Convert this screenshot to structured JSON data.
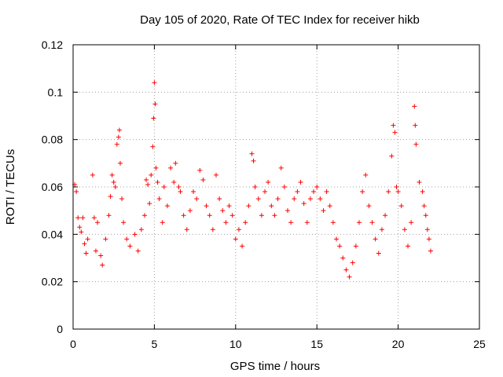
{
  "chart_data": {
    "type": "scatter",
    "title": "Day 105 of 2020, Rate Of TEC Index for receiver hikb",
    "xlabel": "GPS time / hours",
    "ylabel": "ROTI / TECUs",
    "xlim": [
      0,
      25
    ],
    "ylim": [
      0,
      0.12
    ],
    "x_ticks": [
      "0",
      "5",
      "10",
      "15",
      "20",
      "25"
    ],
    "y_ticks": [
      "0",
      "0.02",
      "0.04",
      "0.06",
      "0.08",
      "0.1",
      "0.12"
    ],
    "grid": true,
    "marker": "plus",
    "color": "#ff0000",
    "series": [
      {
        "values": [
          [
            0.1,
            0.061
          ],
          [
            0.2,
            0.058
          ],
          [
            0.3,
            0.047
          ],
          [
            0.4,
            0.043
          ],
          [
            0.5,
            0.041
          ],
          [
            0.6,
            0.047
          ],
          [
            0.7,
            0.036
          ],
          [
            0.8,
            0.032
          ],
          [
            0.9,
            0.038
          ],
          [
            1.2,
            0.065
          ],
          [
            1.3,
            0.047
          ],
          [
            1.4,
            0.033
          ],
          [
            1.5,
            0.045
          ],
          [
            1.7,
            0.031
          ],
          [
            1.8,
            0.027
          ],
          [
            2.0,
            0.038
          ],
          [
            2.2,
            0.048
          ],
          [
            2.3,
            0.056
          ],
          [
            2.4,
            0.065
          ],
          [
            2.5,
            0.062
          ],
          [
            2.6,
            0.06
          ],
          [
            2.7,
            0.078
          ],
          [
            2.8,
            0.081
          ],
          [
            2.85,
            0.084
          ],
          [
            2.9,
            0.07
          ],
          [
            3.0,
            0.055
          ],
          [
            3.1,
            0.045
          ],
          [
            3.3,
            0.038
          ],
          [
            3.5,
            0.035
          ],
          [
            3.8,
            0.04
          ],
          [
            4.0,
            0.033
          ],
          [
            4.2,
            0.042
          ],
          [
            4.4,
            0.048
          ],
          [
            4.5,
            0.063
          ],
          [
            4.6,
            0.061
          ],
          [
            4.7,
            0.053
          ],
          [
            4.8,
            0.065
          ],
          [
            4.9,
            0.077
          ],
          [
            4.95,
            0.089
          ],
          [
            5.0,
            0.104
          ],
          [
            5.05,
            0.095
          ],
          [
            5.1,
            0.068
          ],
          [
            5.2,
            0.062
          ],
          [
            5.3,
            0.055
          ],
          [
            5.5,
            0.045
          ],
          [
            5.6,
            0.06
          ],
          [
            5.8,
            0.052
          ],
          [
            6.0,
            0.068
          ],
          [
            6.2,
            0.062
          ],
          [
            6.3,
            0.07
          ],
          [
            6.5,
            0.06
          ],
          [
            6.6,
            0.058
          ],
          [
            6.8,
            0.048
          ],
          [
            7.0,
            0.042
          ],
          [
            7.2,
            0.05
          ],
          [
            7.4,
            0.058
          ],
          [
            7.6,
            0.055
          ],
          [
            7.8,
            0.067
          ],
          [
            8.0,
            0.063
          ],
          [
            8.2,
            0.052
          ],
          [
            8.4,
            0.048
          ],
          [
            8.6,
            0.042
          ],
          [
            8.8,
            0.065
          ],
          [
            9.0,
            0.055
          ],
          [
            9.2,
            0.05
          ],
          [
            9.4,
            0.045
          ],
          [
            9.6,
            0.052
          ],
          [
            9.8,
            0.048
          ],
          [
            10.0,
            0.038
          ],
          [
            10.2,
            0.042
          ],
          [
            10.4,
            0.035
          ],
          [
            10.6,
            0.045
          ],
          [
            10.8,
            0.052
          ],
          [
            11.0,
            0.074
          ],
          [
            11.1,
            0.071
          ],
          [
            11.2,
            0.06
          ],
          [
            11.4,
            0.055
          ],
          [
            11.6,
            0.048
          ],
          [
            11.8,
            0.058
          ],
          [
            12.0,
            0.062
          ],
          [
            12.2,
            0.052
          ],
          [
            12.4,
            0.048
          ],
          [
            12.6,
            0.055
          ],
          [
            12.8,
            0.068
          ],
          [
            13.0,
            0.06
          ],
          [
            13.2,
            0.05
          ],
          [
            13.4,
            0.045
          ],
          [
            13.6,
            0.055
          ],
          [
            13.8,
            0.058
          ],
          [
            14.0,
            0.062
          ],
          [
            14.2,
            0.053
          ],
          [
            14.4,
            0.045
          ],
          [
            14.6,
            0.055
          ],
          [
            14.8,
            0.058
          ],
          [
            15.0,
            0.06
          ],
          [
            15.2,
            0.055
          ],
          [
            15.4,
            0.05
          ],
          [
            15.6,
            0.058
          ],
          [
            15.8,
            0.052
          ],
          [
            16.0,
            0.045
          ],
          [
            16.2,
            0.038
          ],
          [
            16.4,
            0.035
          ],
          [
            16.6,
            0.03
          ],
          [
            16.8,
            0.025
          ],
          [
            17.0,
            0.022
          ],
          [
            17.2,
            0.028
          ],
          [
            17.4,
            0.035
          ],
          [
            17.6,
            0.045
          ],
          [
            17.8,
            0.058
          ],
          [
            18.0,
            0.065
          ],
          [
            18.2,
            0.052
          ],
          [
            18.4,
            0.045
          ],
          [
            18.6,
            0.038
          ],
          [
            18.8,
            0.032
          ],
          [
            19.0,
            0.042
          ],
          [
            19.2,
            0.048
          ],
          [
            19.4,
            0.058
          ],
          [
            19.6,
            0.073
          ],
          [
            19.7,
            0.086
          ],
          [
            19.8,
            0.083
          ],
          [
            19.9,
            0.06
          ],
          [
            20.0,
            0.058
          ],
          [
            20.2,
            0.052
          ],
          [
            20.4,
            0.042
          ],
          [
            20.6,
            0.035
          ],
          [
            20.8,
            0.045
          ],
          [
            21.0,
            0.094
          ],
          [
            21.05,
            0.086
          ],
          [
            21.1,
            0.078
          ],
          [
            21.3,
            0.062
          ],
          [
            21.5,
            0.058
          ],
          [
            21.6,
            0.052
          ],
          [
            21.7,
            0.048
          ],
          [
            21.8,
            0.042
          ],
          [
            21.9,
            0.038
          ],
          [
            22.0,
            0.033
          ]
        ]
      }
    ]
  }
}
